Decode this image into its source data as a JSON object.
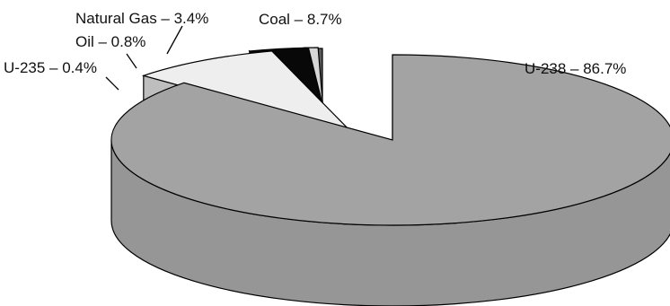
{
  "chart_data": {
    "type": "pie",
    "style": "3d-exploded",
    "title": "",
    "slices": [
      {
        "label": "U-238",
        "value": 86.7,
        "color": "#a3a3a3",
        "display": "U-238 – 86.7%"
      },
      {
        "label": "Coal",
        "value": 8.7,
        "color": "#eeeeee",
        "display": "Coal – 8.7%"
      },
      {
        "label": "Natural Gas",
        "value": 3.4,
        "color": "#080808",
        "display": "Natural Gas – 3.4%"
      },
      {
        "label": "Oil",
        "value": 0.8,
        "color": "#d6d6d6",
        "display": "Oil – 0.8%"
      },
      {
        "label": "U-235",
        "value": 0.4,
        "color": "#5a5a5a",
        "display": "U-235 – 0.4%"
      }
    ]
  }
}
